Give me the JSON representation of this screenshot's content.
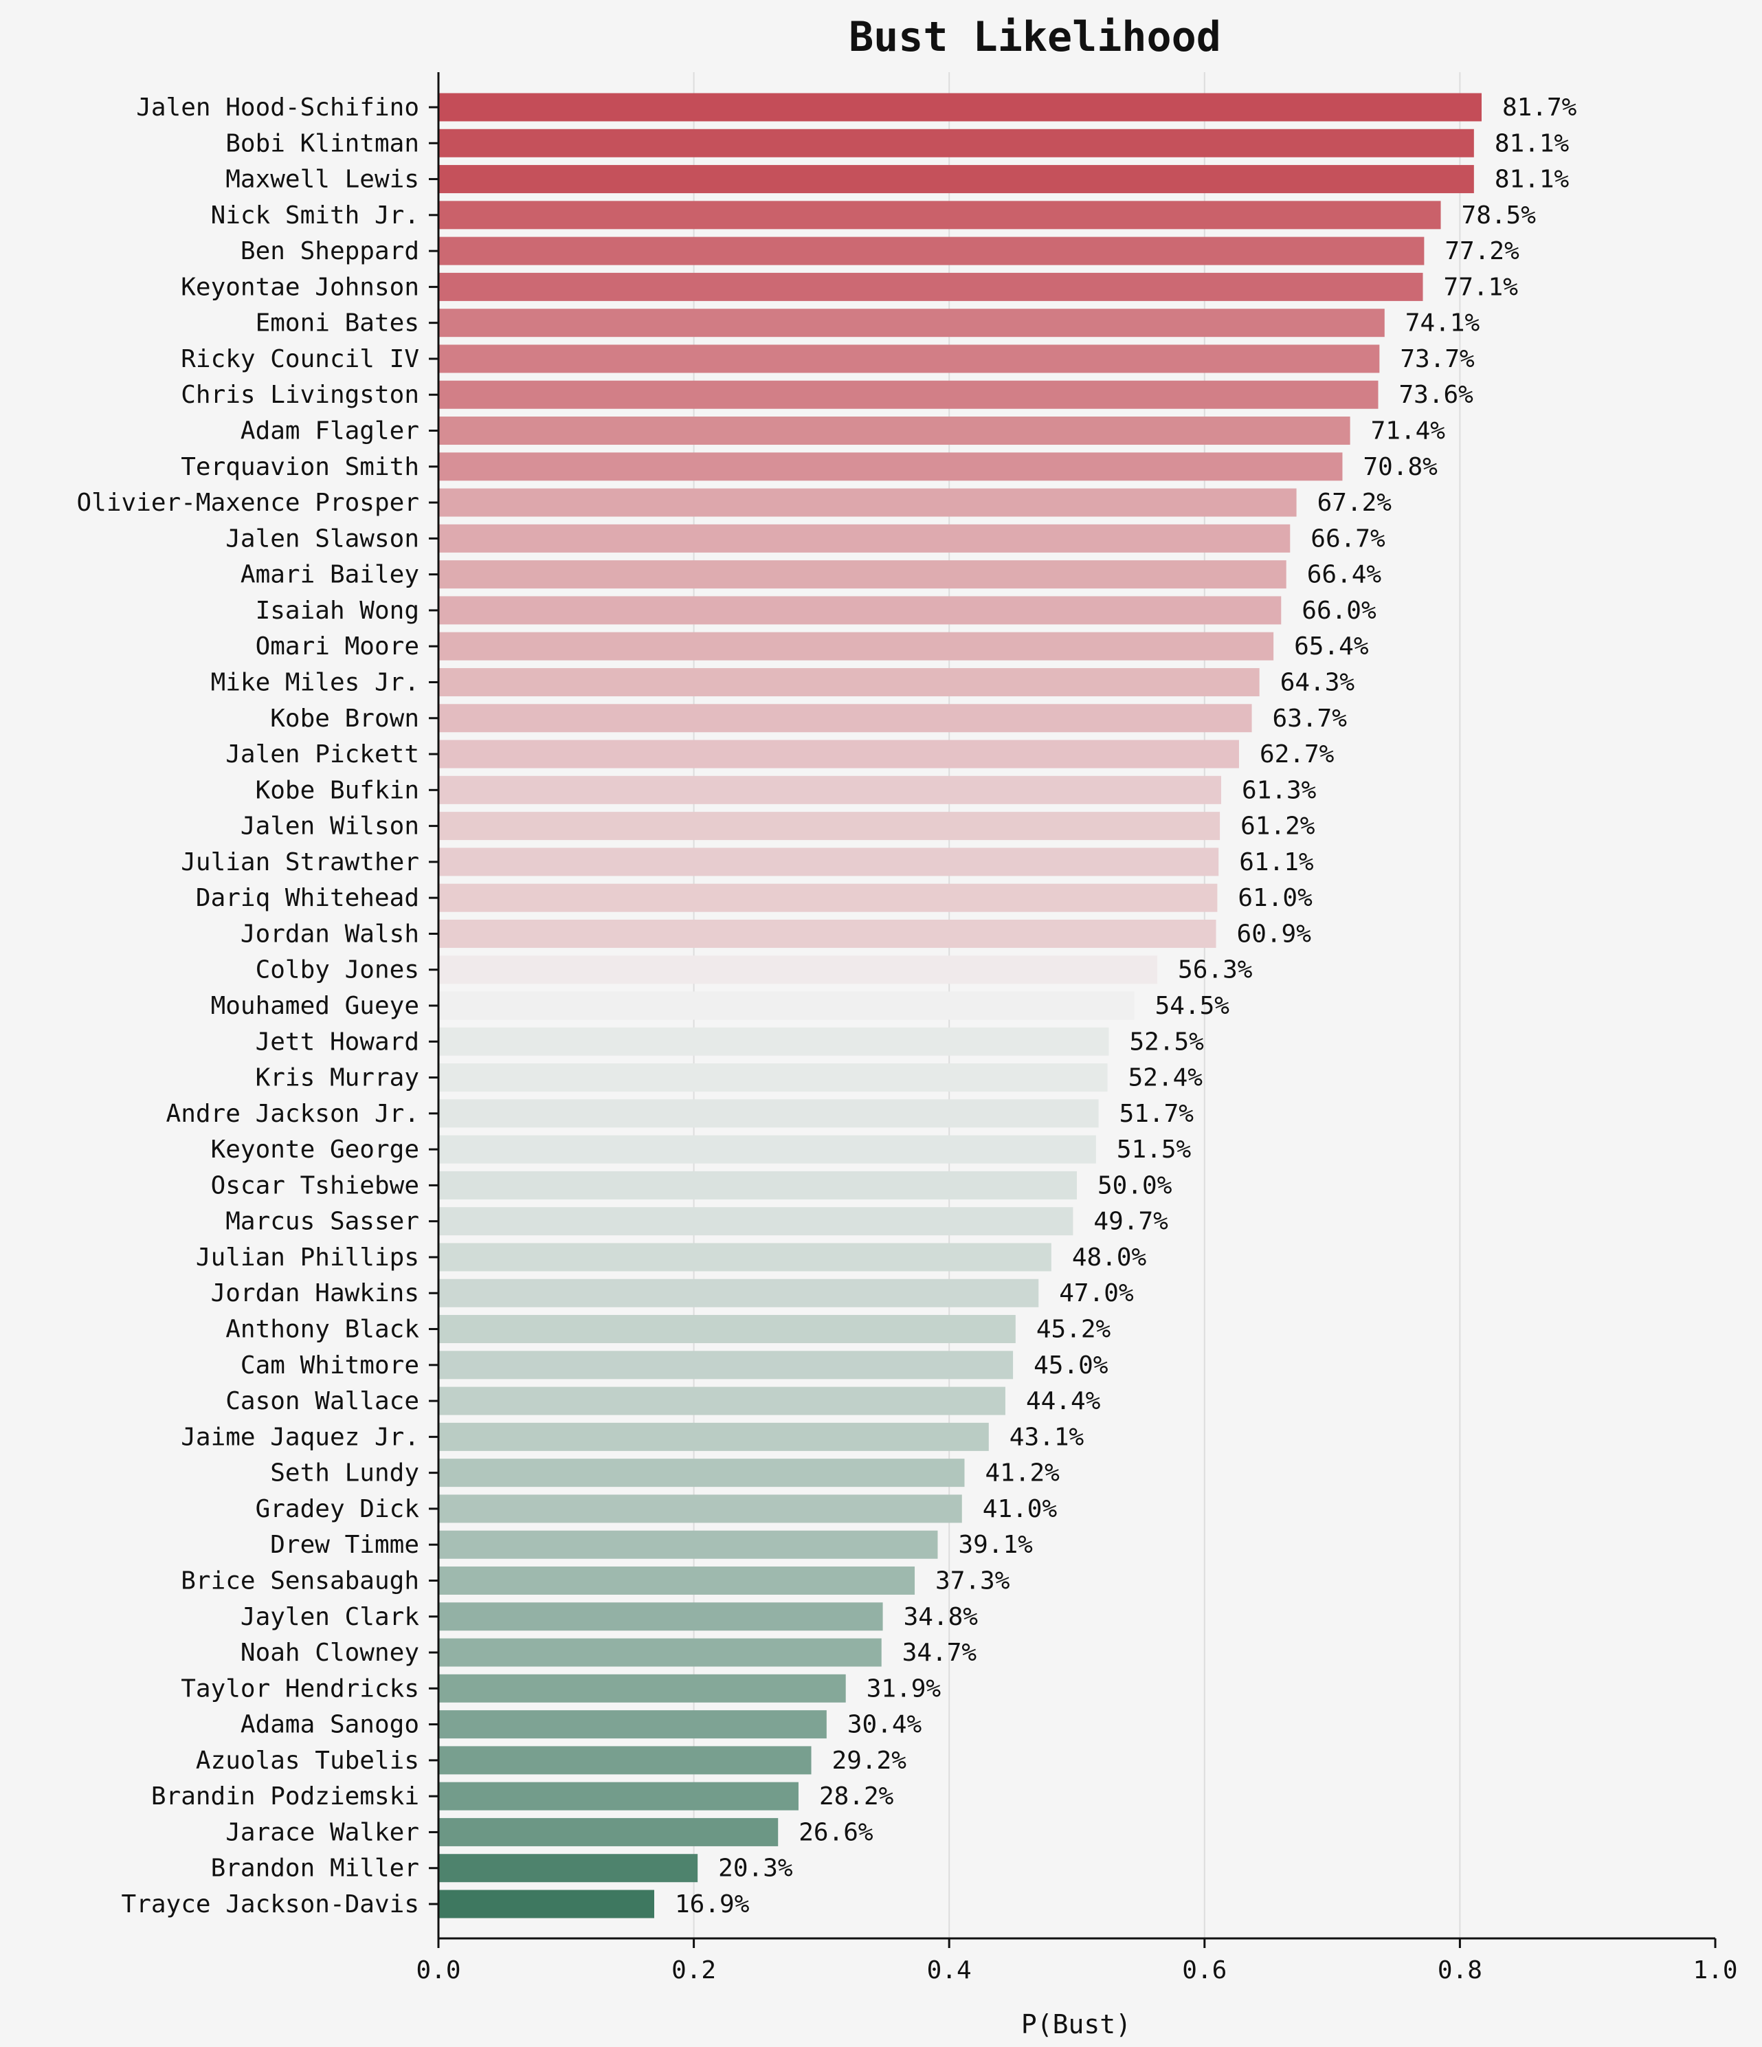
{
  "chart_data": {
    "type": "bar",
    "orientation": "horizontal",
    "title": "Bust Likelihood",
    "xlabel": "P(Bust)",
    "ylabel": "",
    "xlim": [
      0,
      1.0
    ],
    "xticks": [
      "0.0",
      "0.2",
      "0.4",
      "0.6",
      "0.8",
      "1.0"
    ],
    "grid": "vertical",
    "categories": [
      "Jalen Hood-Schifino",
      "Bobi Klintman",
      "Maxwell Lewis",
      "Nick Smith Jr.",
      "Ben Sheppard",
      "Keyontae Johnson",
      "Emoni Bates",
      "Ricky Council IV",
      "Chris Livingston",
      "Adam Flagler",
      "Terquavion Smith",
      "Olivier-Maxence Prosper",
      "Jalen Slawson",
      "Amari Bailey",
      "Isaiah Wong",
      "Omari Moore",
      "Mike Miles Jr.",
      "Kobe Brown",
      "Jalen Pickett",
      "Kobe Bufkin",
      "Jalen Wilson",
      "Julian Strawther",
      "Dariq Whitehead",
      "Jordan Walsh",
      "Colby Jones",
      "Mouhamed Gueye",
      "Jett Howard",
      "Kris Murray",
      "Andre Jackson Jr.",
      "Keyonte George",
      "Oscar Tshiebwe",
      "Marcus Sasser",
      "Julian Phillips",
      "Jordan Hawkins",
      "Anthony Black",
      "Cam Whitmore",
      "Cason Wallace",
      "Jaime Jaquez Jr.",
      "Seth Lundy",
      "Gradey Dick",
      "Drew Timme",
      "Brice Sensabaugh",
      "Jaylen Clark",
      "Noah Clowney",
      "Taylor Hendricks",
      "Adama Sanogo",
      "Azuolas Tubelis",
      "Brandin Podziemski",
      "Jarace Walker",
      "Brandon Miller",
      "Trayce Jackson-Davis"
    ],
    "values": [
      0.817,
      0.811,
      0.811,
      0.785,
      0.772,
      0.771,
      0.741,
      0.737,
      0.736,
      0.714,
      0.708,
      0.672,
      0.667,
      0.664,
      0.66,
      0.654,
      0.643,
      0.637,
      0.627,
      0.613,
      0.612,
      0.611,
      0.61,
      0.609,
      0.563,
      0.545,
      0.525,
      0.524,
      0.517,
      0.515,
      0.5,
      0.497,
      0.48,
      0.47,
      0.452,
      0.45,
      0.444,
      0.431,
      0.412,
      0.41,
      0.391,
      0.373,
      0.348,
      0.347,
      0.319,
      0.304,
      0.292,
      0.282,
      0.266,
      0.203,
      0.169
    ],
    "data_labels": [
      "81.7%",
      "81.1%",
      "81.1%",
      "78.5%",
      "77.2%",
      "77.1%",
      "74.1%",
      "73.7%",
      "73.6%",
      "71.4%",
      "70.8%",
      "67.2%",
      "66.7%",
      "66.4%",
      "66.0%",
      "65.4%",
      "64.3%",
      "63.7%",
      "62.7%",
      "61.3%",
      "61.2%",
      "61.1%",
      "61.0%",
      "60.9%",
      "56.3%",
      "54.5%",
      "52.5%",
      "52.4%",
      "51.7%",
      "51.5%",
      "50.0%",
      "49.7%",
      "48.0%",
      "47.0%",
      "45.2%",
      "45.0%",
      "44.4%",
      "43.1%",
      "41.2%",
      "41.0%",
      "39.1%",
      "37.3%",
      "34.8%",
      "34.7%",
      "31.9%",
      "30.4%",
      "29.2%",
      "28.2%",
      "26.6%",
      "20.3%",
      "16.9%"
    ],
    "colors": {
      "high": "#c44d58",
      "mid": "#f2f2f2",
      "low": "#3e7860",
      "background": "#f5f5f5",
      "grid": "#dddddd",
      "axis": "#111111"
    }
  }
}
